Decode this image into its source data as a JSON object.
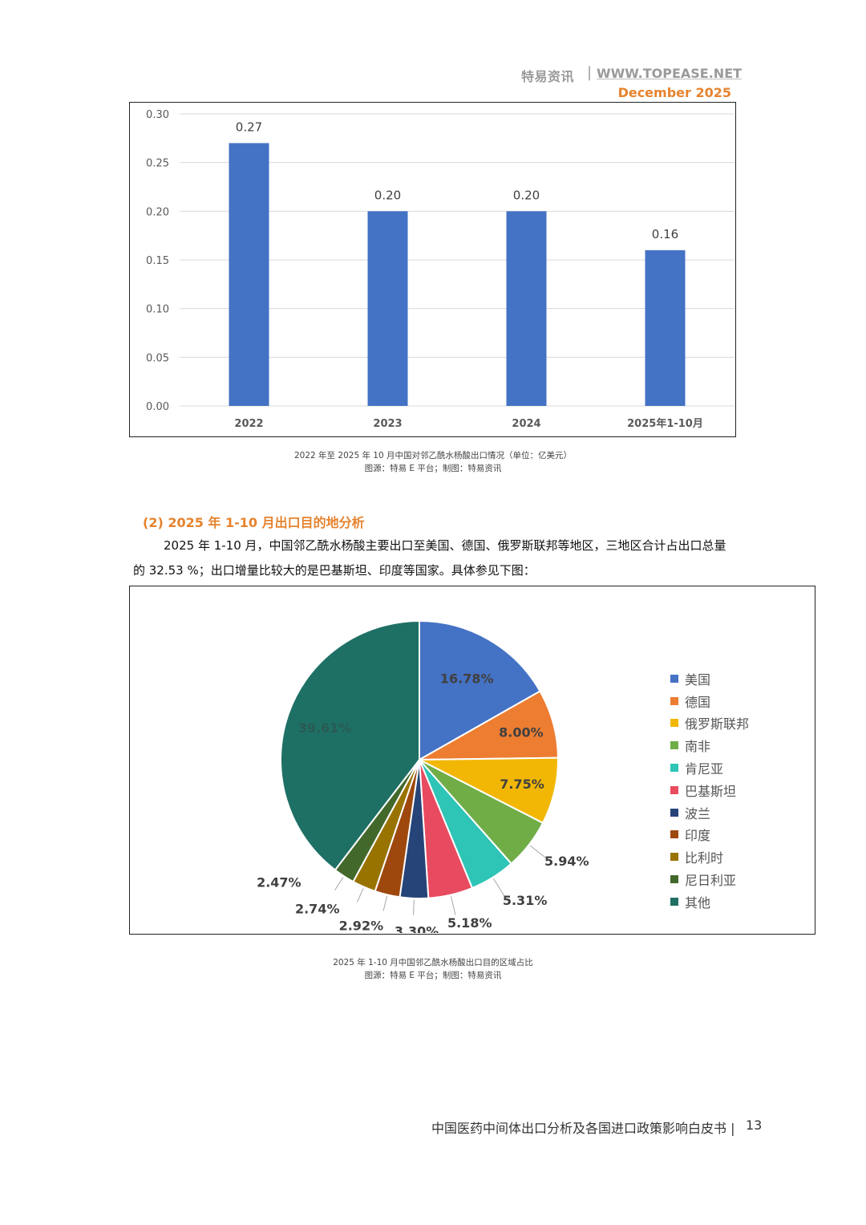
{
  "header": {
    "brand": "特易资讯",
    "separator": "|",
    "url": "WWW.TOPEASE.NET",
    "date": "December 2025"
  },
  "section": {
    "title": "(2) 2025 年 1-10 月出口目的地分析",
    "para1": "2025 年 1-10 月，中国邻乙酰水杨酸主要出口至美国、德国、俄罗斯联邦等地区，三地区合计占出口总量",
    "para2": "的 32.53 %；出口增量比较大的是巴基斯坦、印度等国家。具体参见下图："
  },
  "captions": {
    "bar_caption": "2022 年至 2025 年 10 月中国对邻乙酰水杨酸出口情况（单位：亿美元）",
    "bar_source": "图源：特易 E 平台；制图：特易资讯",
    "pie_caption": "2025 年 1-10 月中国邻乙酰水杨酸出口目的区域占比",
    "pie_source": "图源：特易 E 平台；制图：特易资讯"
  },
  "footer": {
    "title": "中国医药中间体出口分析及各国进口政策影响白皮书 |",
    "page": "13"
  },
  "chart_data": [
    {
      "type": "bar",
      "categories": [
        "2022",
        "2023",
        "2024",
        "2025年1-10月"
      ],
      "values": [
        0.27,
        0.2,
        0.2,
        0.16
      ],
      "value_labels": [
        "0.27",
        "0.20",
        "0.20",
        "0.16"
      ],
      "ylim": [
        0,
        0.3
      ],
      "yticks": [
        "0.00",
        "0.05",
        "0.10",
        "0.15",
        "0.20",
        "0.25",
        "0.30"
      ],
      "grid": true,
      "bar_color": "#4472C4"
    },
    {
      "type": "pie",
      "labels": [
        "美国",
        "德国",
        "俄罗斯联邦",
        "南非",
        "肯尼亚",
        "巴基斯坦",
        "波兰",
        "印度",
        "比利时",
        "尼日利亚",
        "其他"
      ],
      "values": [
        16.78,
        8.0,
        7.75,
        5.94,
        5.31,
        5.18,
        3.3,
        2.92,
        2.74,
        2.47,
        39.61
      ],
      "value_labels": [
        "16.78%",
        "8.00%",
        "7.75%",
        "5.94%",
        "5.31%",
        "5.18%",
        "3.30%",
        "2.92%",
        "2.74%",
        "2.47%",
        "39.61%"
      ],
      "colors": [
        "#4472C4",
        "#ED7D31",
        "#F2B705",
        "#70AD47",
        "#2EC4B6",
        "#E84A5F",
        "#264478",
        "#9E480E",
        "#997300",
        "#43682B",
        "#1E7065"
      ],
      "legend": "right"
    }
  ]
}
